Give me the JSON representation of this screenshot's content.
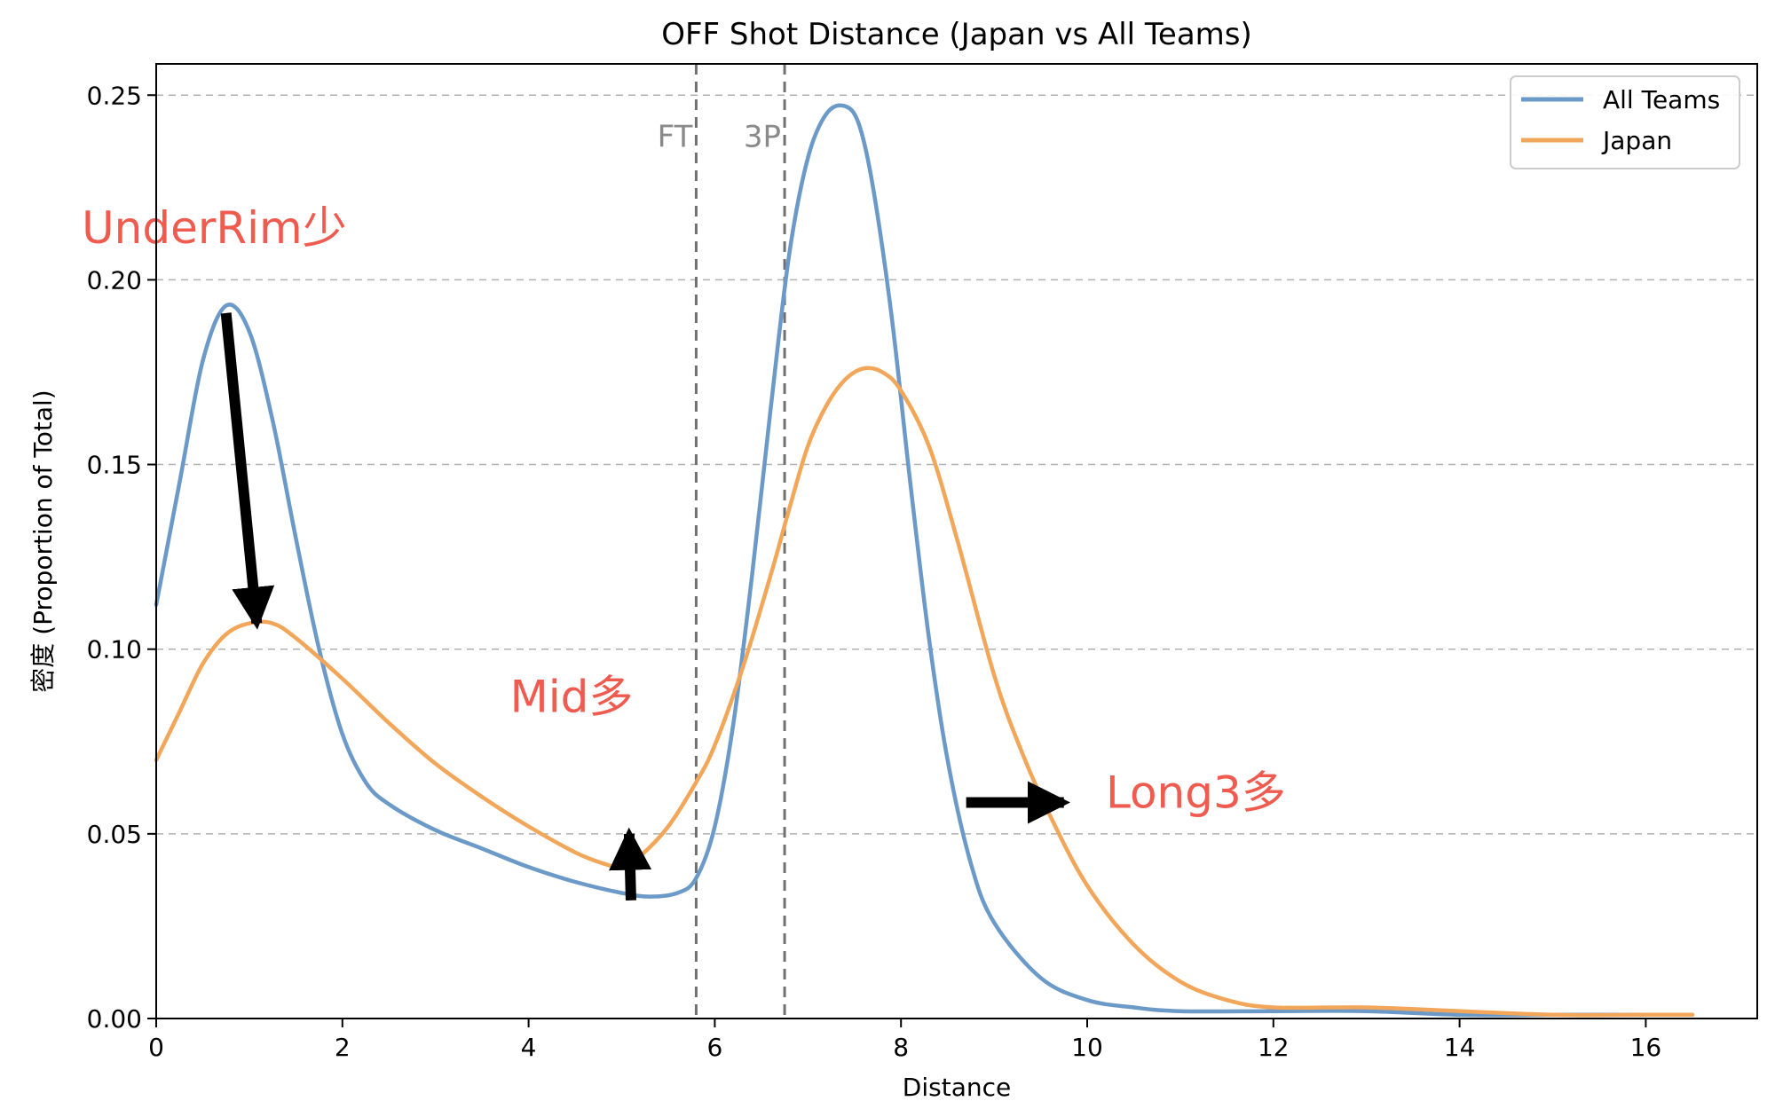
{
  "chart_data": {
    "type": "line",
    "title": "OFF Shot  Distance (Japan vs All Teams)",
    "xlabel": "Distance",
    "ylabel": "密度 (Proportion of Total)",
    "xlim": [
      0,
      17.3
    ],
    "ylim": [
      0,
      0.26
    ],
    "grid": "horizontal dashed",
    "legend_position": "top-right",
    "x_ticks": [
      "0",
      "2",
      "4",
      "6",
      "8",
      "10",
      "12",
      "14",
      "16"
    ],
    "y_ticks": [
      "0.00",
      "0.05",
      "0.10",
      "0.15",
      "0.20",
      "0.25"
    ],
    "series": [
      {
        "name": "All Teams",
        "color": "#6b9ac8",
        "points": [
          [
            0,
            0.112
          ],
          [
            0.25,
            0.145
          ],
          [
            0.5,
            0.178
          ],
          [
            0.75,
            0.193
          ],
          [
            1.0,
            0.186
          ],
          [
            1.25,
            0.162
          ],
          [
            1.5,
            0.13
          ],
          [
            1.75,
            0.1
          ],
          [
            2.0,
            0.077
          ],
          [
            2.25,
            0.064
          ],
          [
            2.5,
            0.058
          ],
          [
            3.0,
            0.051
          ],
          [
            3.5,
            0.046
          ],
          [
            4.0,
            0.041
          ],
          [
            4.5,
            0.037
          ],
          [
            5.0,
            0.034
          ],
          [
            5.3,
            0.033
          ],
          [
            5.6,
            0.034
          ],
          [
            5.8,
            0.038
          ],
          [
            6.0,
            0.052
          ],
          [
            6.2,
            0.08
          ],
          [
            6.4,
            0.12
          ],
          [
            6.6,
            0.165
          ],
          [
            6.8,
            0.207
          ],
          [
            7.0,
            0.233
          ],
          [
            7.2,
            0.245
          ],
          [
            7.4,
            0.247
          ],
          [
            7.55,
            0.242
          ],
          [
            7.7,
            0.225
          ],
          [
            7.9,
            0.19
          ],
          [
            8.1,
            0.145
          ],
          [
            8.3,
            0.103
          ],
          [
            8.5,
            0.07
          ],
          [
            8.75,
            0.042
          ],
          [
            9.0,
            0.026
          ],
          [
            9.5,
            0.011
          ],
          [
            10.0,
            0.005
          ],
          [
            10.5,
            0.003
          ],
          [
            11.0,
            0.002
          ],
          [
            12.0,
            0.002
          ],
          [
            13.0,
            0.002
          ],
          [
            14.0,
            0.001
          ],
          [
            15.0,
            0.001
          ],
          [
            16.0,
            0.001
          ],
          [
            16.5,
            0.001
          ]
        ]
      },
      {
        "name": "Japan",
        "color": "#f1a65a",
        "points": [
          [
            0,
            0.07
          ],
          [
            0.25,
            0.083
          ],
          [
            0.5,
            0.096
          ],
          [
            0.75,
            0.104
          ],
          [
            1.0,
            0.107
          ],
          [
            1.25,
            0.107
          ],
          [
            1.5,
            0.103
          ],
          [
            2.0,
            0.092
          ],
          [
            2.5,
            0.08
          ],
          [
            3.0,
            0.069
          ],
          [
            3.5,
            0.06
          ],
          [
            4.0,
            0.052
          ],
          [
            4.5,
            0.045
          ],
          [
            4.8,
            0.042
          ],
          [
            5.0,
            0.041
          ],
          [
            5.2,
            0.044
          ],
          [
            5.5,
            0.052
          ],
          [
            5.8,
            0.064
          ],
          [
            6.0,
            0.074
          ],
          [
            6.3,
            0.095
          ],
          [
            6.6,
            0.12
          ],
          [
            6.8,
            0.138
          ],
          [
            7.0,
            0.155
          ],
          [
            7.2,
            0.166
          ],
          [
            7.4,
            0.173
          ],
          [
            7.6,
            0.176
          ],
          [
            7.8,
            0.175
          ],
          [
            8.0,
            0.17
          ],
          [
            8.3,
            0.155
          ],
          [
            8.6,
            0.13
          ],
          [
            9.0,
            0.093
          ],
          [
            9.3,
            0.072
          ],
          [
            9.6,
            0.055
          ],
          [
            10.0,
            0.036
          ],
          [
            10.5,
            0.02
          ],
          [
            11.0,
            0.01
          ],
          [
            11.5,
            0.005
          ],
          [
            12.0,
            0.003
          ],
          [
            13.0,
            0.003
          ],
          [
            14.0,
            0.002
          ],
          [
            15.0,
            0.001
          ],
          [
            16.0,
            0.001
          ],
          [
            16.5,
            0.001
          ]
        ]
      }
    ],
    "reference_lines": [
      {
        "x": 5.8,
        "label": "FT"
      },
      {
        "x": 6.75,
        "label": "3P"
      }
    ],
    "annotations": [
      {
        "text": "UnderRim少",
        "x": -0.8,
        "y": 0.21
      },
      {
        "text": "Mid多",
        "x": 3.8,
        "y": 0.083
      },
      {
        "text": "Long3多",
        "x": 10.2,
        "y": 0.057
      }
    ],
    "arrows": [
      {
        "from": [
          0.75,
          0.191
        ],
        "to": [
          1.08,
          0.107
        ]
      },
      {
        "from": [
          5.1,
          0.032
        ],
        "to": [
          5.08,
          0.05
        ]
      },
      {
        "from": [
          8.7,
          0.0585
        ],
        "to": [
          9.75,
          0.0585
        ]
      }
    ]
  }
}
